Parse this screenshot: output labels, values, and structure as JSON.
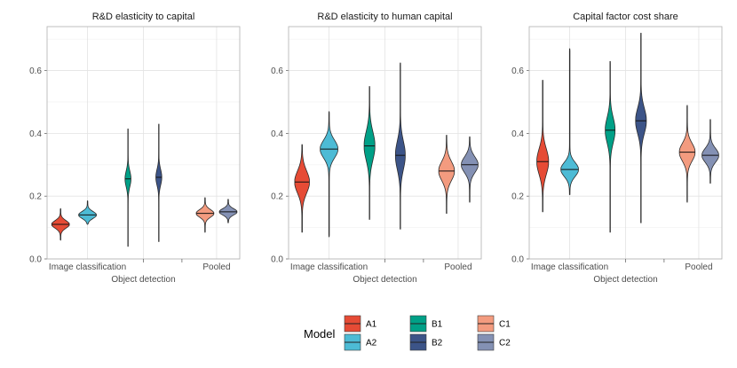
{
  "chart_data": {
    "type": "violin",
    "legend": {
      "title": "Model",
      "position": "bottom",
      "entries": [
        {
          "name": "A1",
          "color": "#E64B35"
        },
        {
          "name": "A2",
          "color": "#4DBBD5"
        },
        {
          "name": "B1",
          "color": "#00A087"
        },
        {
          "name": "B2",
          "color": "#3C5488"
        },
        {
          "name": "C1",
          "color": "#F39B7F"
        },
        {
          "name": "C2",
          "color": "#8491B4"
        }
      ]
    },
    "categories": [
      "Image classification",
      "Object detection",
      "Pooled"
    ],
    "series_order": [
      "A1",
      "A2",
      "B1",
      "B2",
      "C1",
      "C2"
    ],
    "panels": [
      {
        "title": "R&D elasticity to capital",
        "ylim": [
          0,
          0.74
        ],
        "yticks": [
          "0.0",
          "0.2",
          "0.4",
          "0.6"
        ],
        "violins": [
          {
            "model": "A1",
            "min": 0.06,
            "max": 0.16,
            "median": 0.11,
            "spread": 0.012,
            "width": 0.9
          },
          {
            "model": "A2",
            "min": 0.11,
            "max": 0.185,
            "median": 0.14,
            "spread": 0.011,
            "width": 0.9
          },
          {
            "model": "B1",
            "min": 0.04,
            "max": 0.415,
            "median": 0.255,
            "spread": 0.025,
            "width": 0.3
          },
          {
            "model": "B2",
            "min": 0.055,
            "max": 0.43,
            "median": 0.26,
            "spread": 0.025,
            "width": 0.3
          },
          {
            "model": "C1",
            "min": 0.085,
            "max": 0.195,
            "median": 0.145,
            "spread": 0.012,
            "width": 0.9
          },
          {
            "model": "C2",
            "min": 0.115,
            "max": 0.19,
            "median": 0.15,
            "spread": 0.01,
            "width": 0.9
          }
        ]
      },
      {
        "title": "R&D elasticity to human capital",
        "ylim": [
          0,
          0.74
        ],
        "yticks": [
          "0.0",
          "0.2",
          "0.4",
          "0.6"
        ],
        "violins": [
          {
            "model": "A1",
            "min": 0.085,
            "max": 0.365,
            "median": 0.245,
            "spread": 0.035,
            "width": 0.75
          },
          {
            "model": "A2",
            "min": 0.07,
            "max": 0.47,
            "median": 0.35,
            "spread": 0.028,
            "width": 0.9
          },
          {
            "model": "B1",
            "min": 0.125,
            "max": 0.55,
            "median": 0.36,
            "spread": 0.045,
            "width": 0.55
          },
          {
            "model": "B2",
            "min": 0.095,
            "max": 0.625,
            "median": 0.33,
            "spread": 0.045,
            "width": 0.5
          },
          {
            "model": "C1",
            "min": 0.145,
            "max": 0.395,
            "median": 0.28,
            "spread": 0.03,
            "width": 0.8
          },
          {
            "model": "C2",
            "min": 0.18,
            "max": 0.39,
            "median": 0.3,
            "spread": 0.025,
            "width": 0.85
          }
        ]
      },
      {
        "title": "Capital factor cost share",
        "ylim": [
          0,
          0.74
        ],
        "yticks": [
          "0.0",
          "0.2",
          "0.4",
          "0.6"
        ],
        "violins": [
          {
            "model": "A1",
            "min": 0.15,
            "max": 0.57,
            "median": 0.31,
            "spread": 0.04,
            "width": 0.6
          },
          {
            "model": "A2",
            "min": 0.205,
            "max": 0.67,
            "median": 0.285,
            "spread": 0.022,
            "width": 0.9
          },
          {
            "model": "B1",
            "min": 0.085,
            "max": 0.63,
            "median": 0.41,
            "spread": 0.04,
            "width": 0.5
          },
          {
            "model": "B2",
            "min": 0.115,
            "max": 0.72,
            "median": 0.44,
            "spread": 0.04,
            "width": 0.55
          },
          {
            "model": "C1",
            "min": 0.18,
            "max": 0.49,
            "median": 0.34,
            "spread": 0.028,
            "width": 0.8
          },
          {
            "model": "C2",
            "min": 0.24,
            "max": 0.445,
            "median": 0.33,
            "spread": 0.022,
            "width": 0.85
          }
        ]
      }
    ]
  }
}
